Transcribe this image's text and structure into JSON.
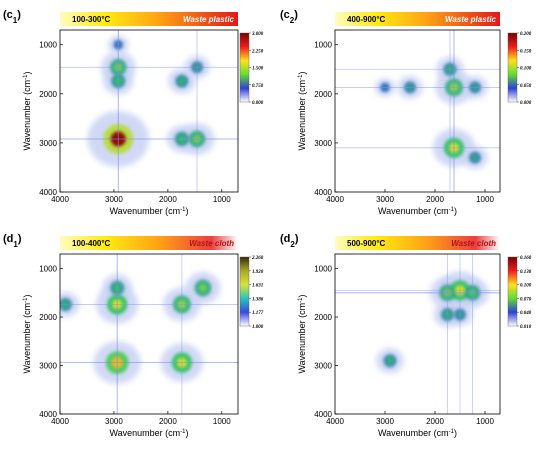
{
  "chart_data": [
    {
      "type": "heatmap",
      "panel_label": "c",
      "panel_sub": "1",
      "temperature_range": "100-300°C",
      "material": "Waste plastic",
      "xlabel": "Wavenumber (cm",
      "ylabel": "Wavenumber (cm",
      "axis_unit_exp": "-1",
      "x_ticks": [
        4000,
        3000,
        2000,
        1000
      ],
      "y_ticks": [
        1000,
        2000,
        3000,
        4000
      ],
      "xlim": [
        4000,
        700
      ],
      "ylim": [
        4000,
        700
      ],
      "colorbar_ticks": [
        "3.000",
        "2.250",
        "1.500",
        "0.750",
        "0.000"
      ],
      "colorbar_colors": [
        "#7a0000",
        "#ee1c1c",
        "#ffe11c",
        "#62dd33",
        "#2f3fd6",
        "#ffffff"
      ],
      "features": [
        {
          "x": 2920,
          "y": 2920,
          "intensity": 1.0
        },
        {
          "x": 2920,
          "y": 1460,
          "intensity": 0.45
        },
        {
          "x": 1460,
          "y": 2920,
          "intensity": 0.45
        },
        {
          "x": 2920,
          "y": 1740,
          "intensity": 0.35
        },
        {
          "x": 1740,
          "y": 2920,
          "intensity": 0.35
        },
        {
          "x": 1740,
          "y": 1740,
          "intensity": 0.3
        },
        {
          "x": 1460,
          "y": 1460,
          "intensity": 0.25
        },
        {
          "x": 2920,
          "y": 1000,
          "intensity": 0.15
        }
      ]
    },
    {
      "type": "heatmap",
      "panel_label": "c",
      "panel_sub": "2",
      "temperature_range": "400-900°C",
      "material": "Waste plastic",
      "xlabel": "Wavenumber (cm",
      "ylabel": "Wavenumber (cm",
      "axis_unit_exp": "-1",
      "x_ticks": [
        4000,
        3000,
        2000,
        1000
      ],
      "y_ticks": [
        1000,
        2000,
        3000,
        4000
      ],
      "xlim": [
        4000,
        700
      ],
      "ylim": [
        4000,
        700
      ],
      "colorbar_ticks": [
        "0.200",
        "0.150",
        "0.100",
        "0.050",
        "0.000"
      ],
      "colorbar_colors": [
        "#7a0000",
        "#ee1c1c",
        "#ffe11c",
        "#62dd33",
        "#2f3fd6",
        "#ffffff"
      ],
      "features": [
        {
          "x": 1620,
          "y": 3100,
          "intensity": 0.6
        },
        {
          "x": 1620,
          "y": 1870,
          "intensity": 0.5
        },
        {
          "x": 1700,
          "y": 1500,
          "intensity": 0.3
        },
        {
          "x": 2500,
          "y": 1870,
          "intensity": 0.25
        },
        {
          "x": 1200,
          "y": 3300,
          "intensity": 0.25
        },
        {
          "x": 1200,
          "y": 1870,
          "intensity": 0.25
        },
        {
          "x": 3000,
          "y": 1870,
          "intensity": 0.15
        }
      ]
    },
    {
      "type": "heatmap",
      "panel_label": "d",
      "panel_sub": "1",
      "temperature_range": "100-400°C",
      "material": "Waste cloth",
      "xlabel": "Wavenumber (cm",
      "ylabel": "Wavenumber (cm",
      "axis_unit_exp": "-1",
      "x_ticks": [
        4000,
        3000,
        2000,
        1000
      ],
      "y_ticks": [
        1000,
        2000,
        3000,
        4000
      ],
      "xlim": [
        4000,
        700
      ],
      "ylim": [
        4000,
        700
      ],
      "colorbar_ticks": [
        "2.260",
        "1.920",
        "1.631",
        "1.386",
        "1.177",
        "1.000"
      ],
      "colorbar_colors": [
        "#3a2a0a",
        "#a8a82a",
        "#d8e33a",
        "#29c6b9",
        "#3b48e0",
        "#ffffff"
      ],
      "features": [
        {
          "x": 2940,
          "y": 2940,
          "intensity": 0.7
        },
        {
          "x": 1740,
          "y": 2940,
          "intensity": 0.6
        },
        {
          "x": 2940,
          "y": 1740,
          "intensity": 0.6
        },
        {
          "x": 1740,
          "y": 1740,
          "intensity": 0.5
        },
        {
          "x": 1350,
          "y": 1400,
          "intensity": 0.45
        },
        {
          "x": 2940,
          "y": 1400,
          "intensity": 0.35
        },
        {
          "x": 3900,
          "y": 1740,
          "intensity": 0.3
        }
      ]
    },
    {
      "type": "heatmap",
      "panel_label": "d",
      "panel_sub": "2",
      "temperature_range": "500-900°C",
      "material": "Waste cloth",
      "xlabel": "Wavenumber (cm",
      "ylabel": "Wavenumber (cm",
      "axis_unit_exp": "-1",
      "x_ticks": [
        4000,
        3000,
        2000,
        1000
      ],
      "y_ticks": [
        1000,
        2000,
        3000,
        4000
      ],
      "xlim": [
        4000,
        700
      ],
      "ylim": [
        4000,
        700
      ],
      "colorbar_ticks": [
        "0.160",
        "0.130",
        "0.100",
        "0.070",
        "0.040",
        "0.010"
      ],
      "colorbar_colors": [
        "#7a0000",
        "#ee1c1c",
        "#ffe11c",
        "#62dd33",
        "#2f3fd6",
        "#ffffff"
      ],
      "features": [
        {
          "x": 1500,
          "y": 1450,
          "intensity": 0.6
        },
        {
          "x": 1750,
          "y": 1500,
          "intensity": 0.45
        },
        {
          "x": 1250,
          "y": 1500,
          "intensity": 0.4
        },
        {
          "x": 2900,
          "y": 2900,
          "intensity": 0.3
        },
        {
          "x": 1750,
          "y": 1950,
          "intensity": 0.3
        },
        {
          "x": 1500,
          "y": 1950,
          "intensity": 0.25
        }
      ]
    }
  ]
}
